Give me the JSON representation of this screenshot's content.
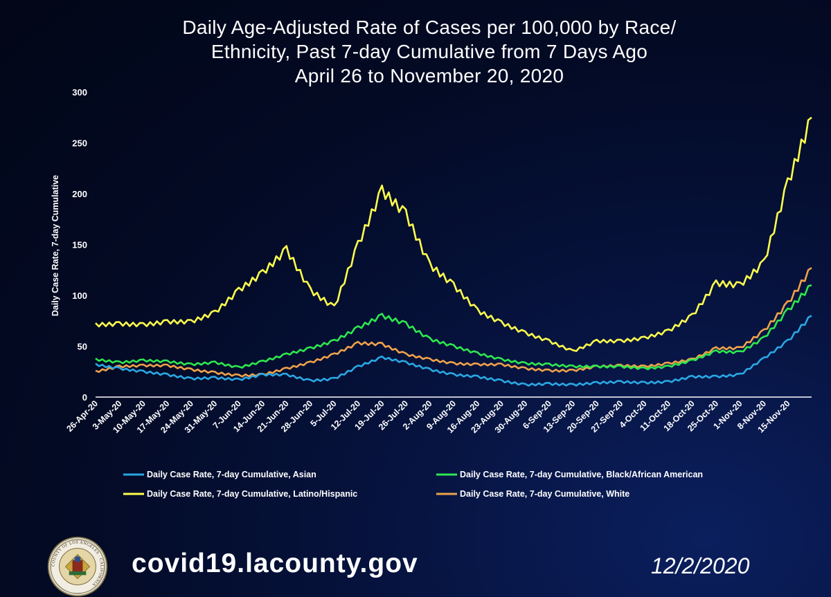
{
  "title_lines": [
    "Daily Age-Adjusted Rate of Cases per 100,000 by Race/",
    "Ethnicity, Past 7-day Cumulative from 7 Days Ago",
    "April 26 to November 20, 2020"
  ],
  "footer": {
    "url": "covid19.lacounty.gov",
    "date": "12/2/2020"
  },
  "seal": {
    "lettering": "COUNTY OF LOS ANGELES · CALIFORNIA"
  },
  "colors": {
    "background": "#030a24",
    "Asian": "#2aa8e4",
    "Black/African American": "#2ee84f",
    "Latino/Hispanic": "#ffff4d",
    "White": "#f0a24a"
  },
  "chart_data": {
    "type": "line",
    "title": "Daily Age-Adjusted Rate of Cases per 100,000 by Race/ Ethnicity, Past 7-day Cumulative from 7 Days Ago April 26 to November 20, 2020",
    "xlabel": "",
    "ylabel": "Daily Case Rate, 7-day Cumulative",
    "ylim": [
      0,
      300
    ],
    "yticks": [
      0,
      50,
      100,
      150,
      200,
      250,
      300
    ],
    "grid": false,
    "legend_position": "bottom",
    "x": [
      "26-Apr-20",
      "3-May-20",
      "10-May-20",
      "17-May-20",
      "24-May-20",
      "31-May-20",
      "7-Jun-20",
      "14-Jun-20",
      "21-Jun-20",
      "28-Jun-20",
      "5-Jul-20",
      "12-Jul-20",
      "19-Jul-20",
      "26-Jul-20",
      "2-Aug-20",
      "9-Aug-20",
      "16-Aug-20",
      "23-Aug-20",
      "30-Aug-20",
      "6-Sep-20",
      "13-Sep-20",
      "20-Sep-20",
      "27-Sep-20",
      "4-Oct-20",
      "11-Oct-20",
      "18-Oct-20",
      "25-Oct-20",
      "1-Nov-20",
      "8-Nov-20",
      "15-Nov-20",
      "20-Nov-20"
    ],
    "series": [
      {
        "name": "Daily Case Rate, 7-day Cumulative, Asian",
        "color": "#2aa8e4",
        "values": [
          32,
          28,
          25,
          22,
          18,
          19,
          17,
          22,
          22,
          16,
          18,
          30,
          39,
          34,
          27,
          22,
          20,
          16,
          12,
          13,
          12,
          14,
          15,
          14,
          15,
          20,
          20,
          22,
          38,
          55,
          80
        ]
      },
      {
        "name": "Daily Case Rate, 7-day Cumulative, Black/African American",
        "color": "#2ee84f",
        "values": [
          37,
          34,
          36,
          35,
          32,
          34,
          29,
          35,
          42,
          48,
          55,
          68,
          80,
          72,
          57,
          50,
          43,
          37,
          33,
          32,
          30,
          30,
          30,
          28,
          30,
          36,
          45,
          44,
          58,
          85,
          110
        ]
      },
      {
        "name": "Daily Case Rate, 7-day Cumulative, Latino/Hispanic",
        "color": "#ffff4d",
        "values": [
          71,
          72,
          71,
          74,
          74,
          83,
          105,
          122,
          145,
          105,
          88,
          150,
          203,
          180,
          130,
          110,
          85,
          73,
          63,
          55,
          45,
          55,
          55,
          58,
          65,
          80,
          112,
          110,
          132,
          210,
          275
        ]
      },
      {
        "name": "Daily Case Rate, 7-day Cumulative, White",
        "color": "#f0a24a",
        "values": [
          25,
          30,
          31,
          31,
          27,
          24,
          21,
          22,
          28,
          34,
          42,
          53,
          52,
          42,
          37,
          33,
          32,
          32,
          28,
          26,
          26,
          30,
          31,
          30,
          33,
          37,
          48,
          48,
          65,
          92,
          127
        ]
      }
    ]
  }
}
